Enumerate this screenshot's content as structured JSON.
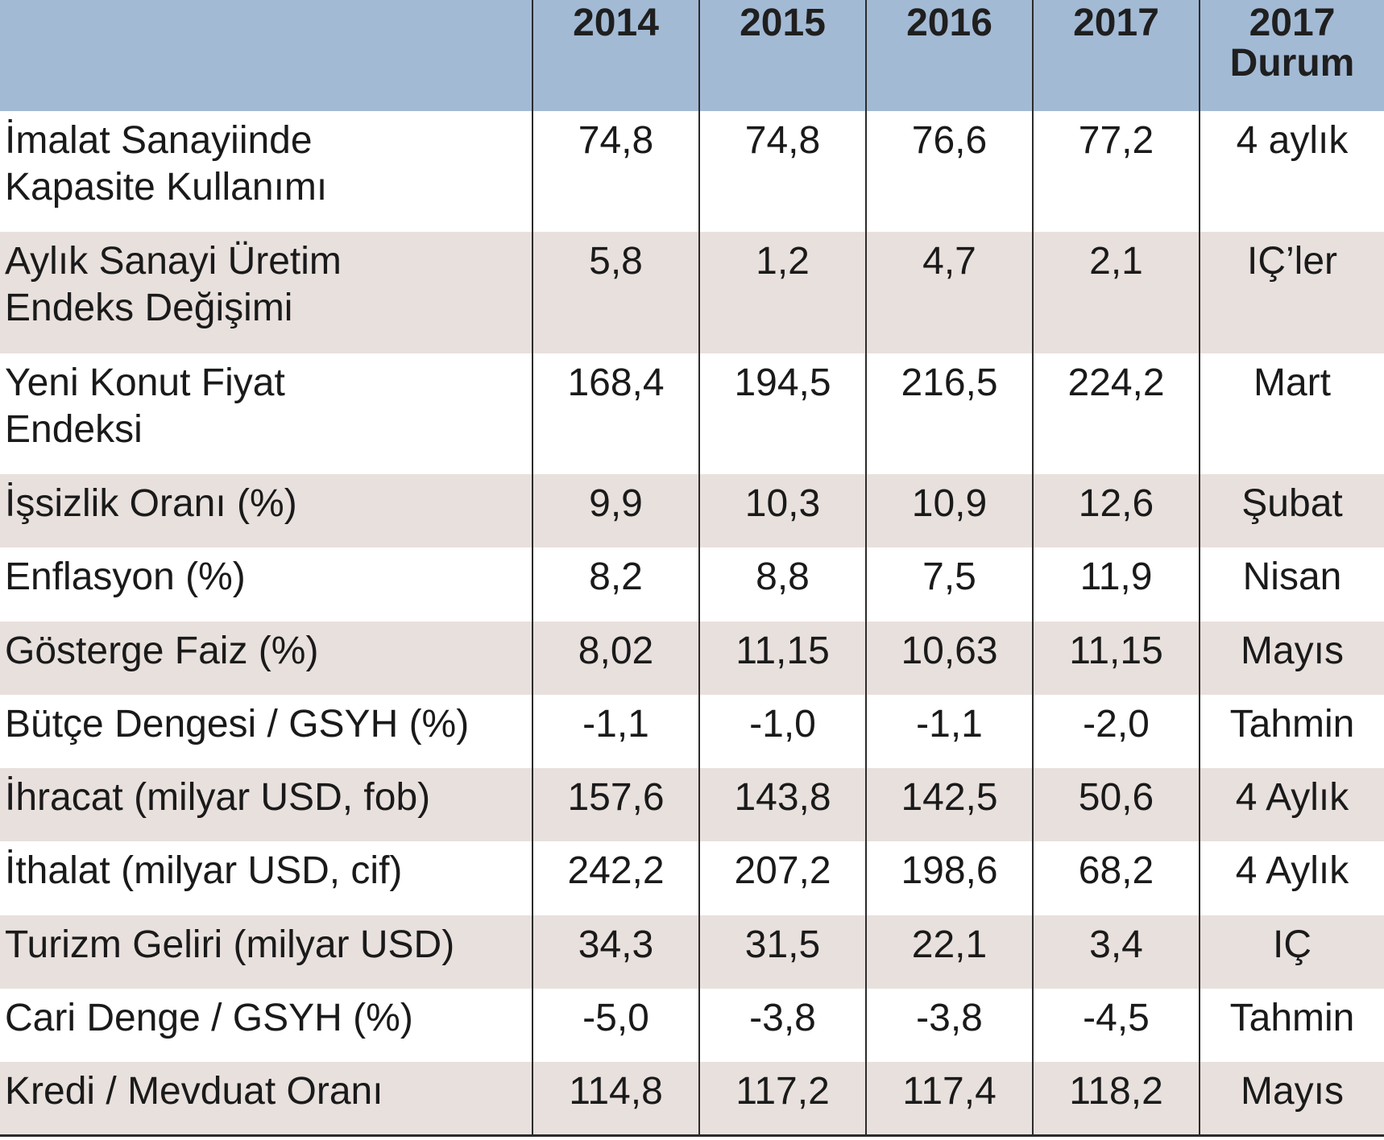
{
  "header": {
    "columns": [
      "",
      "2014",
      "2015",
      "2016",
      "2017",
      "2017\nDurum"
    ],
    "col_2014": "2014",
    "col_2015": "2015",
    "col_2016": "2016",
    "col_2017": "2017",
    "col_status_line1": "2017",
    "col_status_line2": "Durum"
  },
  "rows": [
    {
      "label_line1": "İmalat Sanayiinde",
      "label_line2": "Kapasite Kullanımı",
      "v2014": "74,8",
      "v2015": "74,8",
      "v2016": "76,6",
      "v2017": "77,2",
      "status": "4 aylık"
    },
    {
      "label_line1": "Aylık Sanayi Üretim",
      "label_line2": "Endeks Değişimi",
      "v2014": "5,8",
      "v2015": "1,2",
      "v2016": "4,7",
      "v2017": "2,1",
      "status": "IÇ’ler"
    },
    {
      "label_line1": "Yeni Konut Fiyat",
      "label_line2": "Endeksi",
      "v2014": "168,4",
      "v2015": "194,5",
      "v2016": "216,5",
      "v2017": "224,2",
      "status": "Mart"
    },
    {
      "label": "İşsizlik Oranı (%)",
      "v2014": "9,9",
      "v2015": "10,3",
      "v2016": "10,9",
      "v2017": "12,6",
      "status": "Şubat"
    },
    {
      "label": "Enflasyon (%)",
      "v2014": "8,2",
      "v2015": "8,8",
      "v2016": "7,5",
      "v2017": "11,9",
      "status": "Nisan"
    },
    {
      "label": "Gösterge Faiz (%)",
      "v2014": "8,02",
      "v2015": "11,15",
      "v2016": "10,63",
      "v2017": "11,15",
      "status": "Mayıs"
    },
    {
      "label": "Bütçe Dengesi / GSYH (%)",
      "v2014": "-1,1",
      "v2015": "-1,0",
      "v2016": "-1,1",
      "v2017": "-2,0",
      "status": "Tahmin"
    },
    {
      "label": "İhracat (milyar USD, fob)",
      "v2014": "157,6",
      "v2015": "143,8",
      "v2016": "142,5",
      "v2017": "50,6",
      "status": "4 Aylık"
    },
    {
      "label": "İthalat (milyar USD, cif)",
      "v2014": "242,2",
      "v2015": "207,2",
      "v2016": "198,6",
      "v2017": "68,2",
      "status": "4 Aylık"
    },
    {
      "label": "Turizm Geliri (milyar USD)",
      "v2014": "34,3",
      "v2015": "31,5",
      "v2016": "22,1",
      "v2017": "3,4",
      "status": "IÇ"
    },
    {
      "label": "Cari Denge / GSYH (%)",
      "v2014": "-5,0",
      "v2015": "-3,8",
      "v2016": "-3,8",
      "v2017": "-4,5",
      "status": "Tahmin"
    },
    {
      "label": "Kredi / Mevduat Oranı",
      "v2014": "114,8",
      "v2015": "117,2",
      "v2016": "117,4",
      "v2017": "118,2",
      "status": "Mayıs"
    }
  ],
  "colors": {
    "header_bg": "#a3bad5",
    "stripe_bg": "#e8e0dd",
    "row_bg": "#ffffff",
    "grid_line": "#2b2b2b"
  }
}
